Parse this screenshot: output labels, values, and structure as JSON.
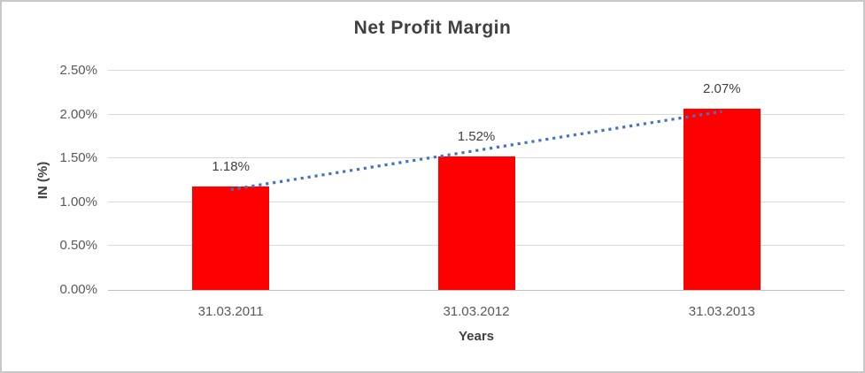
{
  "window": {
    "background": "#FFFFFF",
    "border_color": "#C8C8C8"
  },
  "chart_data": {
    "type": "bar",
    "title": "Net Profit Margin",
    "categories": [
      "31.03.2011",
      "31.03.2012",
      "31.03.2013"
    ],
    "values": [
      1.18,
      1.52,
      2.07
    ],
    "data_labels": [
      "1.18%",
      "1.52%",
      "2.07%"
    ],
    "xlabel": "Years",
    "ylabel": "IN (%)",
    "ylim": [
      0,
      2.5
    ],
    "ytick_step": 0.5,
    "ytick_labels": [
      "0.00%",
      "0.50%",
      "1.00%",
      "1.50%",
      "2.00%",
      "2.50%"
    ],
    "grid": true,
    "legend": "none",
    "bar_color": "#FF0000",
    "gridline_color": "#D9D9D9",
    "axis_line_color": "#BFBFBF",
    "title_color": "#404040",
    "tick_color": "#595959",
    "trendline": {
      "type": "linear",
      "style": "dotted",
      "color": "#4472C4"
    }
  }
}
